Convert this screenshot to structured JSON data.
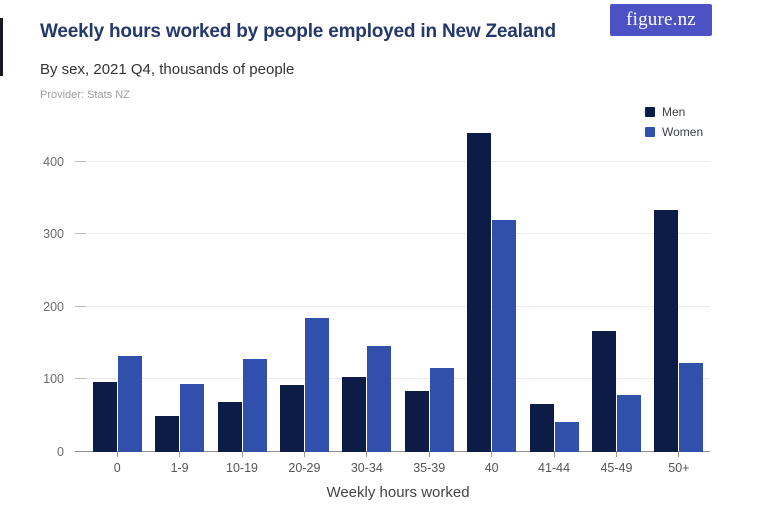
{
  "header": {
    "title": "Weekly hours worked by people employed in New Zealand",
    "subtitle": "By sex, 2021 Q4, thousands of people",
    "provider": "Provider: Stats NZ",
    "logo_text": "figure.nz"
  },
  "colors": {
    "logo_bg": "#4c52c4",
    "title_text": "#24386b",
    "men": "#0d1b47",
    "women": "#3150ab",
    "gridline": "#ebebeb",
    "axis_line": "#8f8f8f"
  },
  "chart_data": {
    "type": "bar",
    "title": "Weekly hours worked by people employed in New Zealand",
    "subtitle": "By sex, 2021 Q4, thousands of people",
    "categories": [
      "0",
      "1-9",
      "10-19",
      "20-29",
      "30-34",
      "35-39",
      "40",
      "41-44",
      "45-49",
      "50+"
    ],
    "series": [
      {
        "name": "Men",
        "color": "#0d1b47",
        "values": [
          97,
          49,
          69,
          93,
          103,
          84,
          440,
          66,
          167,
          334
        ]
      },
      {
        "name": "Women",
        "color": "#3150ab",
        "values": [
          133,
          94,
          128,
          185,
          146,
          116,
          320,
          42,
          79,
          123
        ]
      }
    ],
    "xlabel": "Weekly hours worked",
    "ylabel": "",
    "ylim": [
      0,
      455
    ],
    "yticks": [
      0,
      100,
      200,
      300,
      400
    ],
    "grid": true,
    "legend_position": "top-right"
  }
}
